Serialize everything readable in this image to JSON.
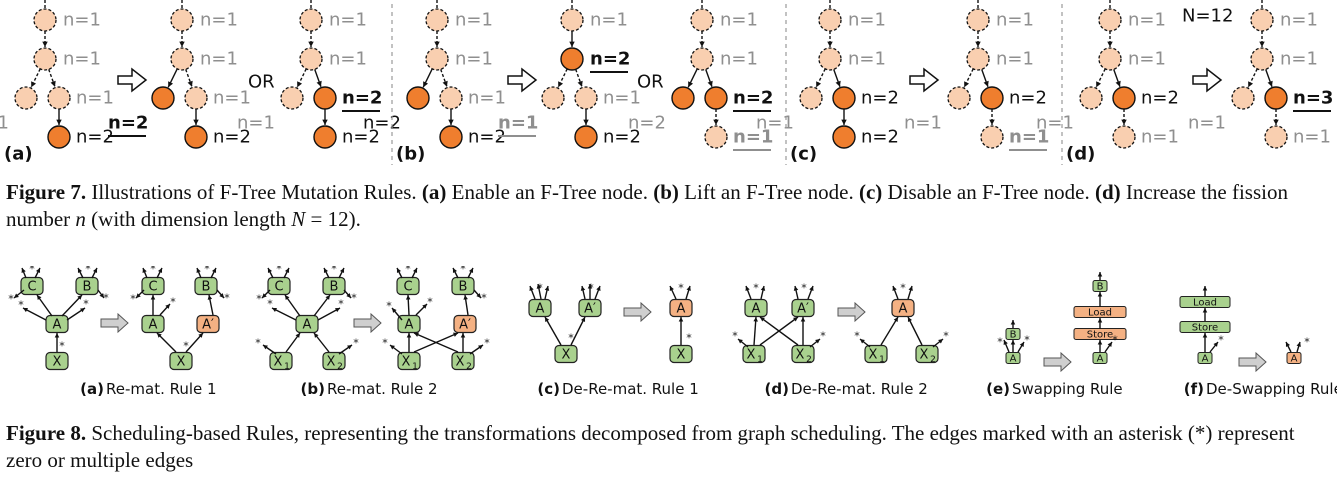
{
  "figure7": {
    "n_labels": {
      "n1": "n=1",
      "n2": "n=2",
      "n3": "n=3"
    },
    "big_n_label": "N=12",
    "or_label": "OR",
    "panel_labels": [
      "(a)",
      "(b)",
      "(c)",
      "(d)"
    ],
    "caption": {
      "fig_label": "Figure 7.",
      "intro": " Illustrations of F-Tree Mutation Rules. ",
      "a_label": "(a)",
      "a_text": " Enable an F-Tree node. ",
      "b_label": "(b)",
      "b_text": " Lift an F-Tree node. ",
      "c_label": "(c)",
      "c_text": " Disable an F-Tree node. ",
      "d_label": "(d)",
      "d_text_1": " Increase the fission number ",
      "d_var_n": "n",
      "d_text_2": " (with dimension length ",
      "d_var_N": "N",
      "d_text_3": " = 12)."
    }
  },
  "figure8": {
    "node_labels": {
      "A": "A",
      "A_prime": "A′",
      "B": "B",
      "C": "C",
      "X": "X",
      "X1": "X",
      "X2": "X",
      "sub1": "1",
      "sub2": "2",
      "load": "Load",
      "store": "Store",
      "star": "*"
    },
    "subcaptions": [
      {
        "label": "(a)",
        "text": " Re-mat. Rule 1"
      },
      {
        "label": "(b)",
        "text": " Re-mat. Rule 2"
      },
      {
        "label": "(c)",
        "text": " De-Re-mat. Rule 1"
      },
      {
        "label": "(d)",
        "text": " De-Re-mat. Rule 2"
      },
      {
        "label": "(e)",
        "text": " Swapping Rule"
      },
      {
        "label": "(f)",
        "text": " De-Swapping Rule"
      }
    ],
    "caption": {
      "fig_label": "Figure 8.",
      "text": " Scheduling-based Rules, representing the transformations decomposed from graph scheduling. The edges marked with an asterisk (*) represent zero or multiple edges"
    }
  },
  "colors": {
    "light_node": "#f9cfb0",
    "orange_node": "#ef7e2e",
    "green_node": "#a9d18e",
    "green_stroke": "#3a5f2a",
    "salmon_node": "#f4b183",
    "grey_label": "#8f8f8f",
    "arrow_fill": "#cfcfcf"
  }
}
